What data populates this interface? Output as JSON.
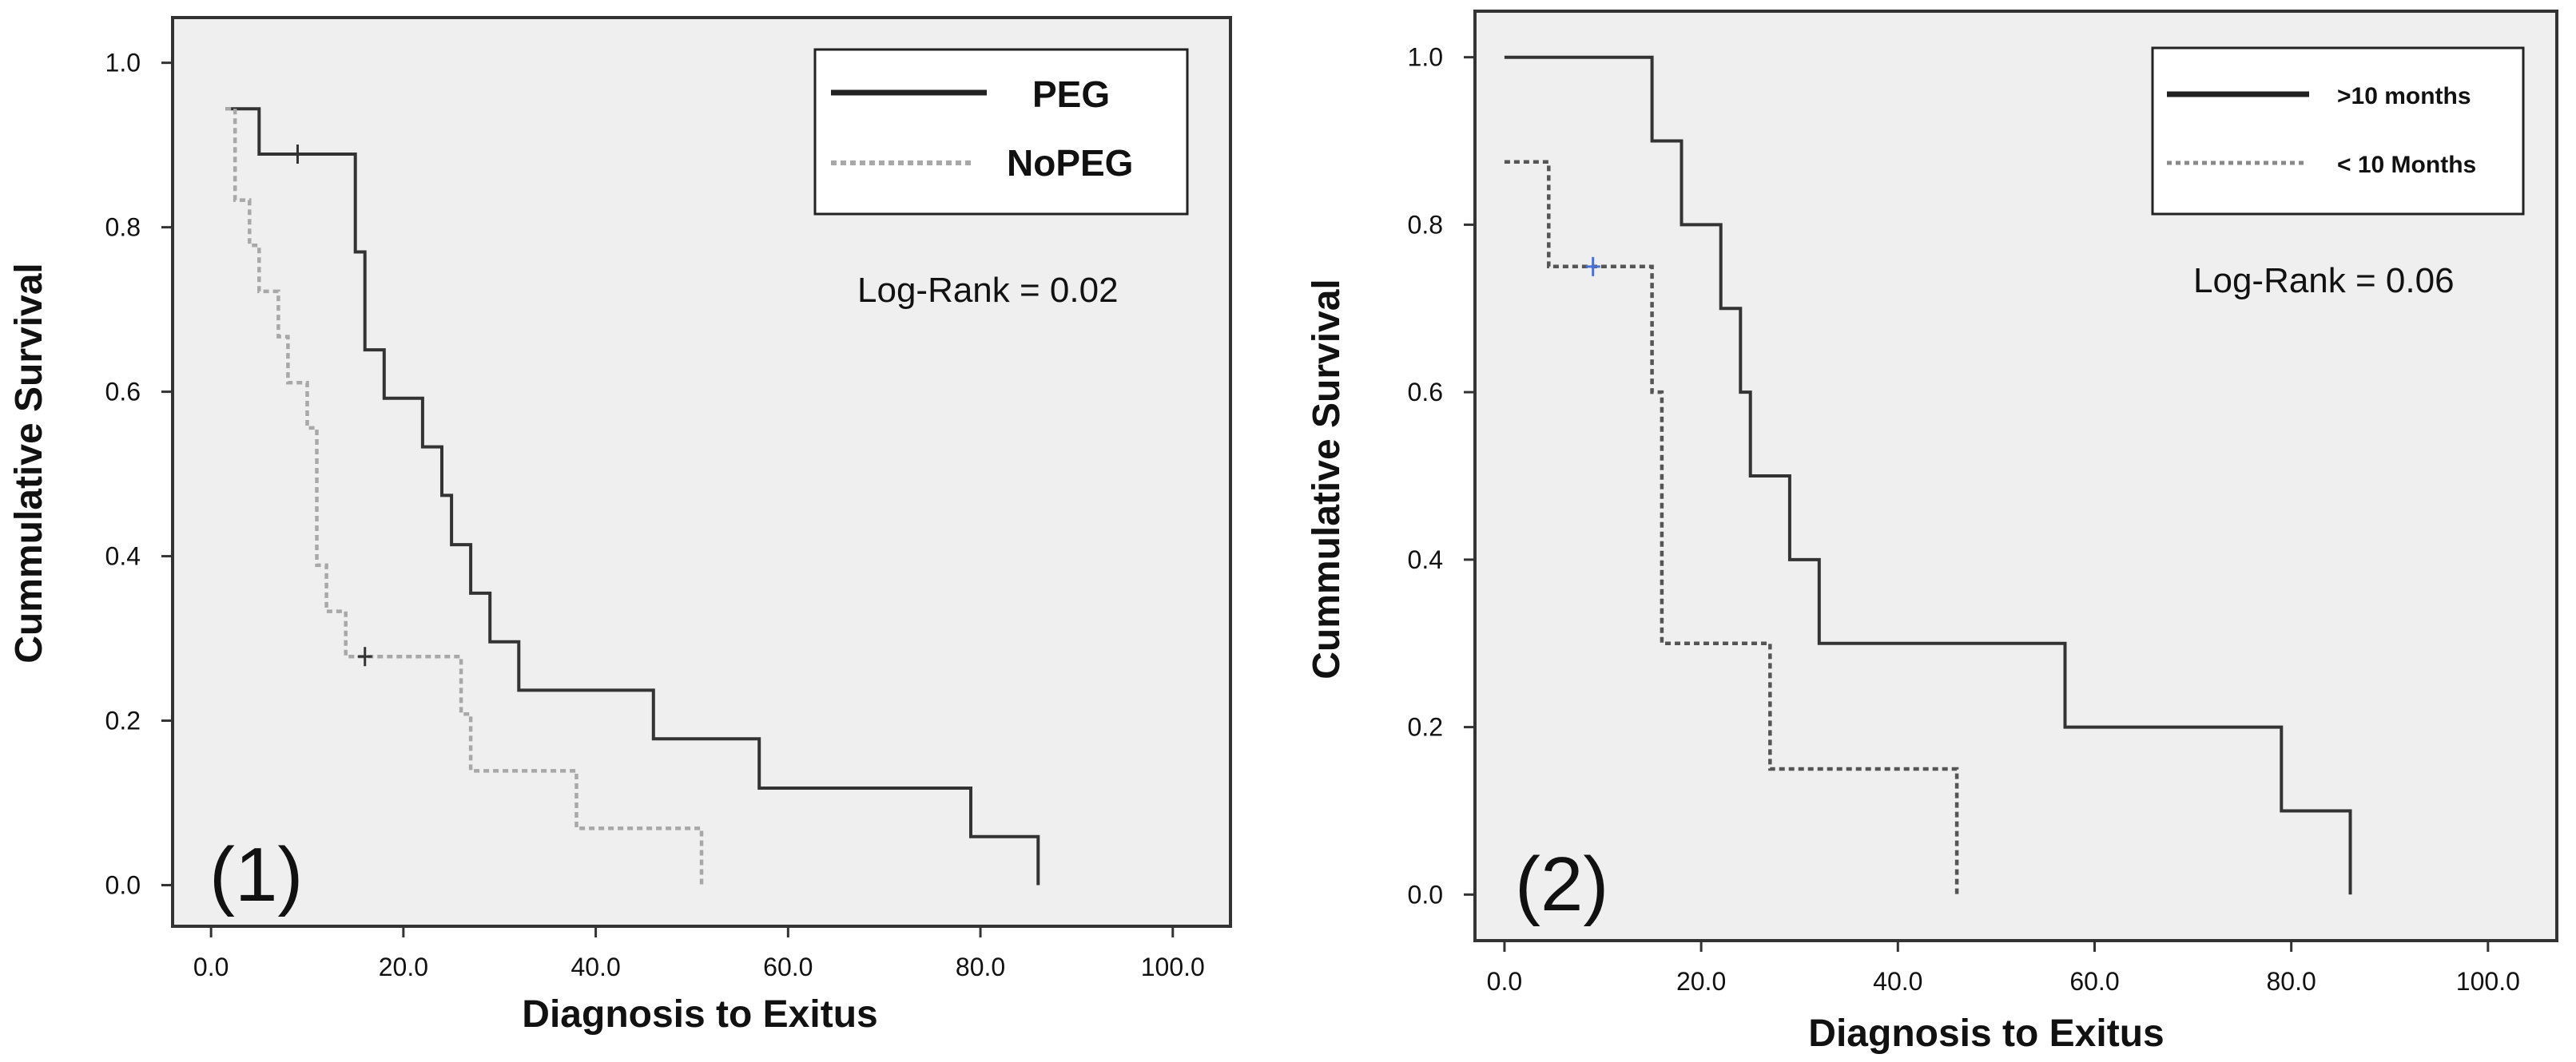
{
  "chart_data": [
    {
      "type": "line",
      "subtype": "kaplan-meier-step",
      "panel_label": "(1)",
      "xlabel": "Diagnosis to Exitus",
      "ylabel": "Cummulative Survival",
      "xlim": [
        -4,
        106
      ],
      "ylim": [
        -0.05,
        1.055
      ],
      "x_ticks": [
        0,
        20,
        40,
        60,
        80,
        100
      ],
      "x_tick_labels": [
        "0.0",
        "20.0",
        "40.0",
        "60.0",
        "80.0",
        "100.0"
      ],
      "y_ticks": [
        0,
        0.2,
        0.4,
        0.6,
        0.8,
        1.0
      ],
      "y_tick_labels": [
        "0.0",
        "0.2",
        "0.4",
        "0.6",
        "0.8",
        "1.0"
      ],
      "annotation": "Log-Rank = 0.02",
      "legend_position": "top-right",
      "grid": false,
      "series": [
        {
          "name": "PEG",
          "line_style": "solid",
          "color": "#333333",
          "steps": [
            [
              1.5,
              0.944
            ],
            [
              5,
              0.944
            ],
            [
              5,
              0.889
            ],
            [
              15,
              0.889
            ],
            [
              15,
              0.77
            ],
            [
              16,
              0.77
            ],
            [
              16,
              0.651
            ],
            [
              18,
              0.651
            ],
            [
              18,
              0.592
            ],
            [
              22,
              0.592
            ],
            [
              22,
              0.533
            ],
            [
              24,
              0.533
            ],
            [
              24,
              0.474
            ],
            [
              25,
              0.474
            ],
            [
              25,
              0.414
            ],
            [
              27,
              0.414
            ],
            [
              27,
              0.355
            ],
            [
              29,
              0.355
            ],
            [
              29,
              0.296
            ],
            [
              32,
              0.296
            ],
            [
              32,
              0.237
            ],
            [
              46,
              0.237
            ],
            [
              46,
              0.178
            ],
            [
              57,
              0.178
            ],
            [
              57,
              0.118
            ],
            [
              79,
              0.118
            ],
            [
              79,
              0.059
            ],
            [
              86,
              0.059
            ],
            [
              86,
              0.0
            ]
          ],
          "censored": [
            [
              9,
              0.889
            ]
          ]
        },
        {
          "name": "NoPEG",
          "line_style": "dotted",
          "color": "#a8a8a8",
          "steps": [
            [
              1.5,
              0.944
            ],
            [
              2.5,
              0.944
            ],
            [
              2.5,
              0.833
            ],
            [
              4,
              0.833
            ],
            [
              4,
              0.778
            ],
            [
              5,
              0.778
            ],
            [
              5,
              0.722
            ],
            [
              7,
              0.722
            ],
            [
              7,
              0.667
            ],
            [
              8,
              0.667
            ],
            [
              8,
              0.611
            ],
            [
              10,
              0.611
            ],
            [
              10,
              0.556
            ],
            [
              11,
              0.556
            ],
            [
              11,
              0.389
            ],
            [
              12,
              0.389
            ],
            [
              12,
              0.333
            ],
            [
              14,
              0.333
            ],
            [
              14,
              0.278
            ],
            [
              26,
              0.278
            ],
            [
              26,
              0.208
            ],
            [
              27,
              0.208
            ],
            [
              27,
              0.139
            ],
            [
              38,
              0.139
            ],
            [
              38,
              0.069
            ],
            [
              51,
              0.069
            ],
            [
              51,
              0.0
            ]
          ],
          "censored": [
            [
              16,
              0.278
            ]
          ]
        }
      ]
    },
    {
      "type": "line",
      "subtype": "kaplan-meier-step",
      "panel_label": "(2)",
      "xlabel": "Diagnosis to Exitus",
      "ylabel": "Cummulative Survival",
      "xlim": [
        -3,
        107
      ],
      "ylim": [
        -0.055,
        1.055
      ],
      "x_ticks": [
        0,
        20,
        40,
        60,
        80,
        100
      ],
      "x_tick_labels": [
        "0.0",
        "20.0",
        "40.0",
        "60.0",
        "80.0",
        "100.0"
      ],
      "y_ticks": [
        0,
        0.2,
        0.4,
        0.6,
        0.8,
        1.0
      ],
      "y_tick_labels": [
        "0.0",
        "0.2",
        "0.4",
        "0.6",
        "0.8",
        "1.0"
      ],
      "annotation": "Log-Rank = 0.06",
      "legend_position": "top-right",
      "grid": false,
      "series": [
        {
          "name": ">10 months",
          "line_style": "solid",
          "color": "#333333",
          "steps": [
            [
              0,
              1.0
            ],
            [
              15,
              1.0
            ],
            [
              15,
              0.9
            ],
            [
              18,
              0.9
            ],
            [
              18,
              0.8
            ],
            [
              22,
              0.8
            ],
            [
              22,
              0.7
            ],
            [
              24,
              0.7
            ],
            [
              24,
              0.6
            ],
            [
              25,
              0.6
            ],
            [
              25,
              0.5
            ],
            [
              29,
              0.5
            ],
            [
              29,
              0.4
            ],
            [
              32,
              0.4
            ],
            [
              32,
              0.3
            ],
            [
              57,
              0.3
            ],
            [
              57,
              0.2
            ],
            [
              79,
              0.2
            ],
            [
              79,
              0.1
            ],
            [
              86,
              0.1
            ],
            [
              86,
              0.0
            ]
          ],
          "censored": []
        },
        {
          "name": "< 10 Months",
          "line_style": "dotted",
          "color": "#555555",
          "steps": [
            [
              0,
              0.875
            ],
            [
              4.5,
              0.875
            ],
            [
              4.5,
              0.75
            ],
            [
              15,
              0.75
            ],
            [
              15,
              0.6
            ],
            [
              16,
              0.6
            ],
            [
              16,
              0.3
            ],
            [
              27,
              0.3
            ],
            [
              27,
              0.15
            ],
            [
              46,
              0.15
            ],
            [
              46,
              0.0
            ]
          ],
          "censored": [
            [
              9,
              0.75
            ]
          ]
        }
      ]
    }
  ],
  "colors": {
    "plot_background": "#efefef",
    "frame": "#333333",
    "censor_mark_panel_2": "#4a6fd6"
  }
}
